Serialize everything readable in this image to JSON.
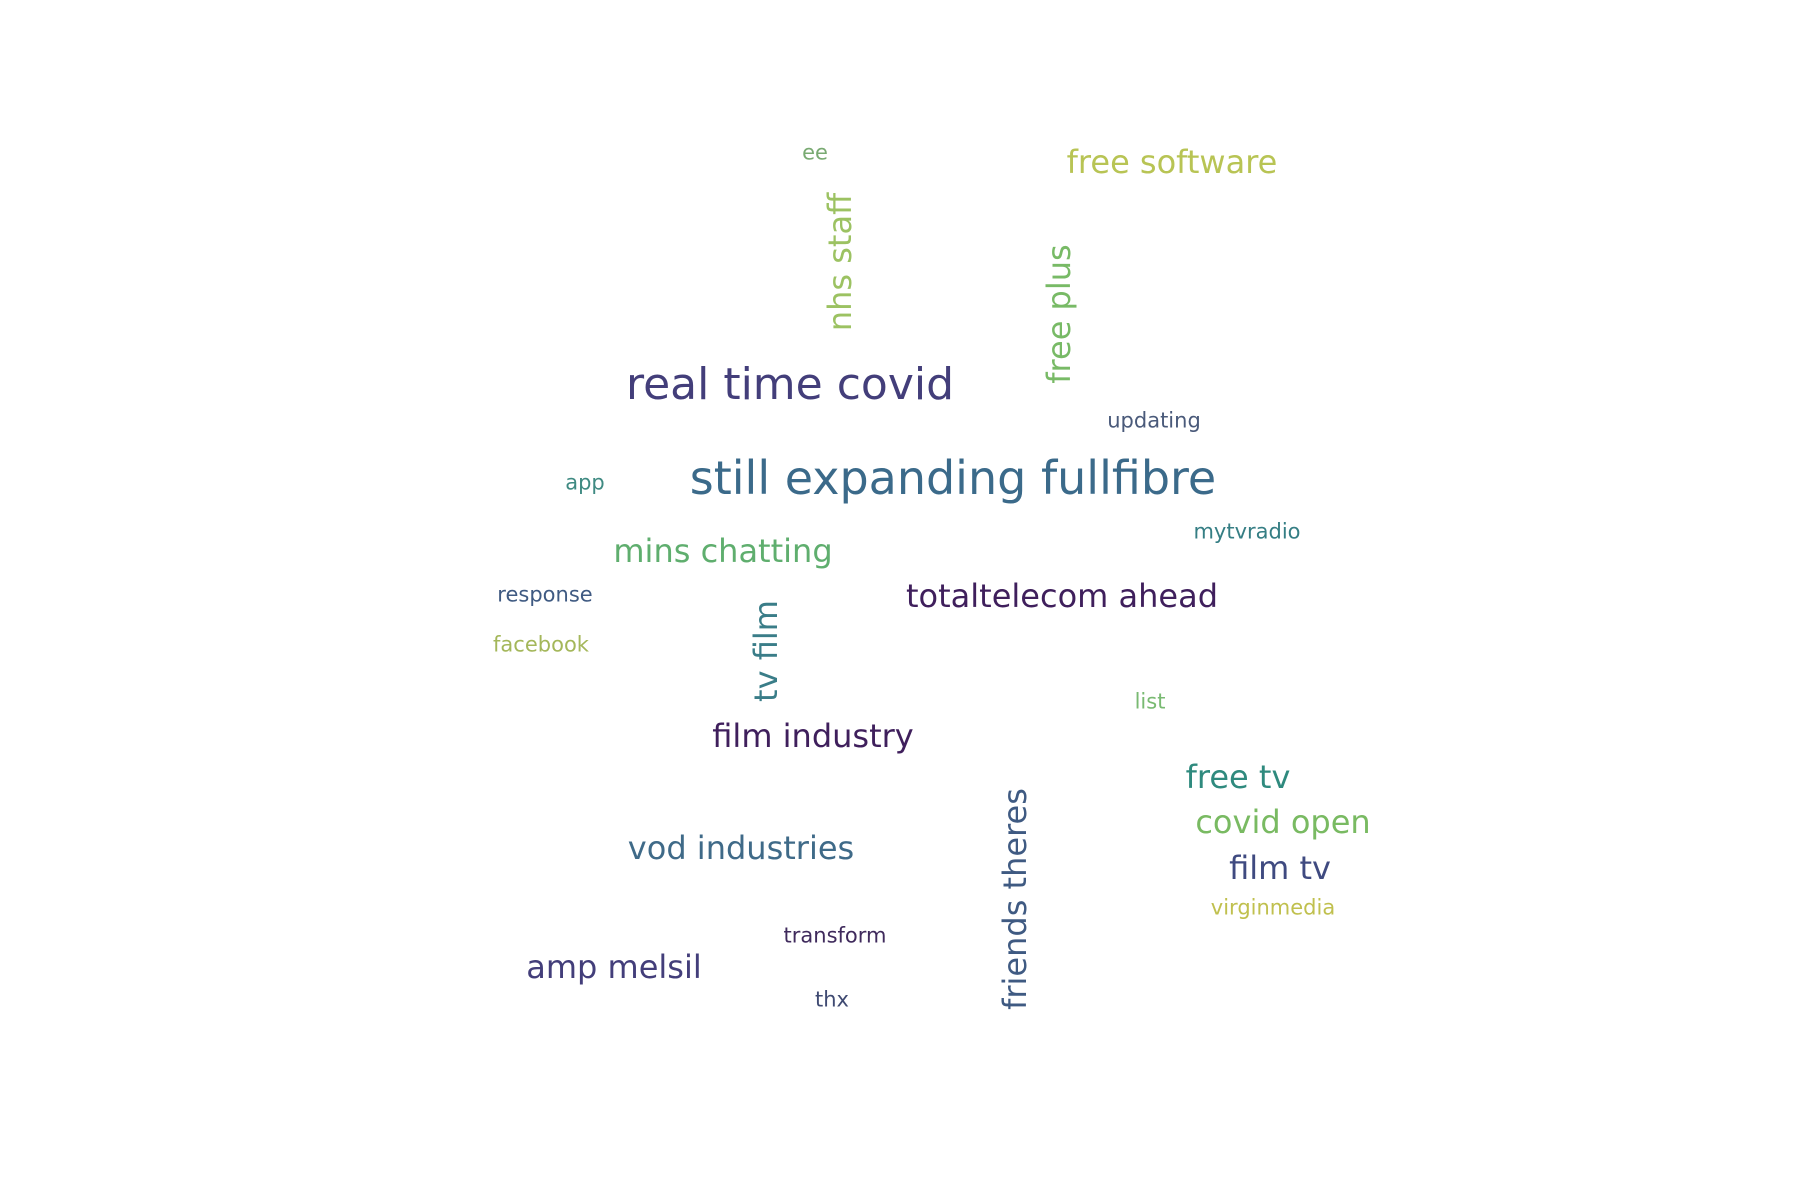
{
  "words": [
    {
      "text": "still expanding fullfibre",
      "color": "#3b6a8a",
      "weight": 1.0,
      "vertical": false
    },
    {
      "text": "real time covid",
      "color": "#433e7a",
      "weight": 0.9,
      "vertical": false
    },
    {
      "text": "totaltelecom ahead",
      "color": "#3f1f5c",
      "weight": 0.65,
      "vertical": false
    },
    {
      "text": "mins chatting",
      "color": "#5fae6e",
      "weight": 0.65,
      "vertical": false
    },
    {
      "text": "film industry",
      "color": "#3f1f5c",
      "weight": 0.65,
      "vertical": false
    },
    {
      "text": "vod industries",
      "color": "#3f6a88",
      "weight": 0.65,
      "vertical": false
    },
    {
      "text": "amp melsil",
      "color": "#433e7a",
      "weight": 0.65,
      "vertical": false
    },
    {
      "text": "free software",
      "color": "#b8c454",
      "weight": 0.65,
      "vertical": false
    },
    {
      "text": "covid open",
      "color": "#79ba62",
      "weight": 0.65,
      "vertical": false
    },
    {
      "text": "film tv",
      "color": "#3f4a80",
      "weight": 0.65,
      "vertical": false
    },
    {
      "text": "free tv",
      "color": "#2f8a7e",
      "weight": 0.65,
      "vertical": false
    },
    {
      "text": "nhs staff",
      "color": "#9cc262",
      "weight": 0.65,
      "vertical": true
    },
    {
      "text": "free plus",
      "color": "#78ba66",
      "weight": 0.65,
      "vertical": true
    },
    {
      "text": "tv film",
      "color": "#3a7d88",
      "weight": 0.65,
      "vertical": true
    },
    {
      "text": "friends theres",
      "color": "#3f5a82",
      "weight": 0.65,
      "vertical": true
    },
    {
      "text": "virginmedia",
      "color": "#c0c04e",
      "weight": 0.3,
      "vertical": false
    },
    {
      "text": "facebook",
      "color": "#a4b75a",
      "weight": 0.3,
      "vertical": false
    },
    {
      "text": "response",
      "color": "#3f5a82",
      "weight": 0.3,
      "vertical": false
    },
    {
      "text": "mytvradio",
      "color": "#357e84",
      "weight": 0.3,
      "vertical": false
    },
    {
      "text": "updating",
      "color": "#4a5a7a",
      "weight": 0.3,
      "vertical": false
    },
    {
      "text": "transform",
      "color": "#3f2a5c",
      "weight": 0.3,
      "vertical": false
    },
    {
      "text": "list",
      "color": "#79ba72",
      "weight": 0.3,
      "vertical": false
    },
    {
      "text": "thx",
      "color": "#3f4a72",
      "weight": 0.3,
      "vertical": false
    },
    {
      "text": "app",
      "color": "#3f8a82",
      "weight": 0.3,
      "vertical": false
    },
    {
      "text": "ee",
      "color": "#79aa72",
      "weight": 0.3,
      "vertical": false
    }
  ]
}
